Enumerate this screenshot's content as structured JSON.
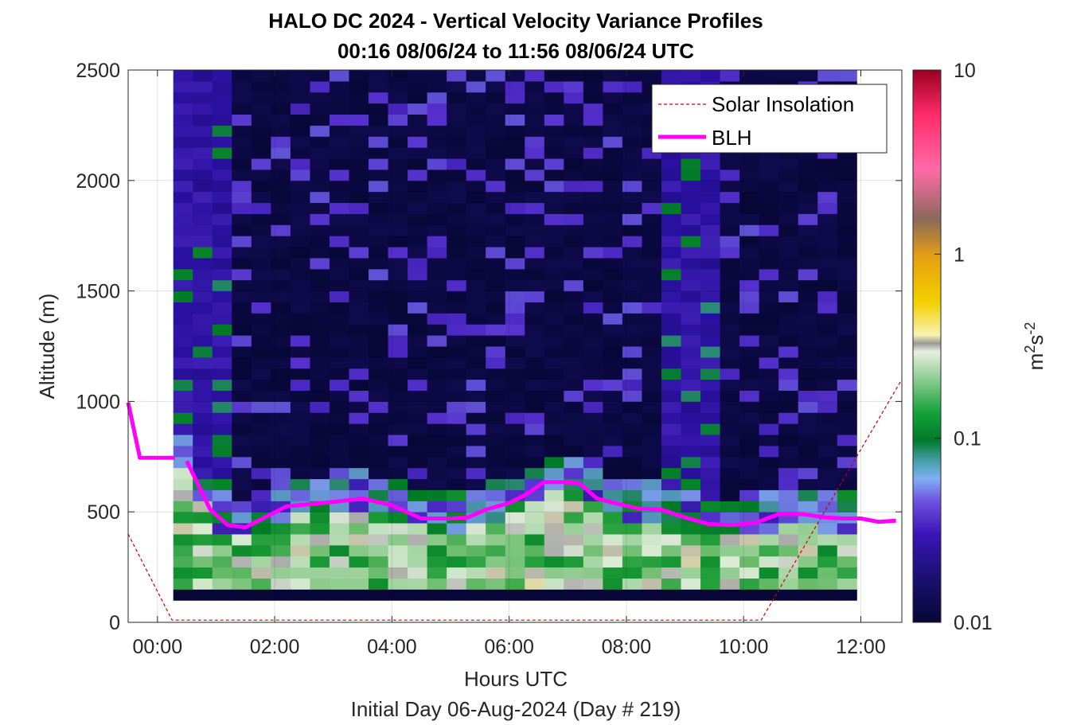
{
  "chart_data": {
    "type": "heatmap",
    "title": "HALO DC 2024 - Vertical Velocity Variance Profiles",
    "subtitle": "00:16 08/06/24 to 11:56 08/06/24  UTC",
    "xlabel": "Hours UTC",
    "xlabel2": "Initial Day 06-Aug-2024 (Day # 219)",
    "ylabel": "Altitude (m)",
    "colorbar_label": "m²s⁻²",
    "colorbar_label_base": "m",
    "colorbar_label_exp1": "2",
    "colorbar_label_mid": "s",
    "colorbar_label_exp2": "-2",
    "xlim": [
      -0.5,
      12.7
    ],
    "ylim": [
      0,
      2500
    ],
    "x_ticks": [
      0,
      2,
      4,
      6,
      8,
      10,
      12
    ],
    "x_tick_labels": [
      "00:00",
      "02:00",
      "04:00",
      "06:00",
      "08:00",
      "10:00",
      "12:00"
    ],
    "y_ticks": [
      0,
      500,
      1000,
      1500,
      2000,
      2500
    ],
    "y_tick_labels": [
      "0",
      "500",
      "1000",
      "1500",
      "2000",
      "2500"
    ],
    "color_scale": "log",
    "clim": [
      0.01,
      10
    ],
    "colorbar_ticks": [
      0.01,
      0.1,
      1,
      10
    ],
    "colorbar_tick_labels": [
      "0.01",
      "0.1",
      "1",
      "10"
    ],
    "grid": true,
    "legend_position": "top-right",
    "legend": [
      {
        "label": "Solar Insolation",
        "style": "dashed",
        "color": "#cc0000"
      },
      {
        "label": "BLH",
        "style": "solid",
        "color": "#ff00ff"
      }
    ],
    "heatmap_time_range_h": [
      0.27,
      11.93
    ],
    "heatmap_altitude_range_m": [
      100,
      2500
    ],
    "series": [
      {
        "name": "BLH",
        "x": [
          -0.5,
          -0.3,
          0.3,
          0.5,
          0.7,
          0.9,
          1.2,
          1.5,
          1.8,
          2.2,
          2.6,
          3.0,
          3.5,
          4.0,
          4.5,
          5.0,
          5.3,
          5.6,
          6.0,
          6.3,
          6.6,
          6.9,
          7.2,
          7.5,
          7.8,
          8.2,
          8.6,
          9.0,
          9.4,
          9.8,
          10.2,
          10.6,
          11.0,
          11.4,
          11.7,
          12.0,
          12.3,
          12.6
        ],
        "y": [
          995,
          745,
          745,
          730,
          620,
          510,
          440,
          430,
          470,
          525,
          535,
          545,
          560,
          530,
          470,
          470,
          475,
          510,
          540,
          580,
          635,
          635,
          630,
          560,
          540,
          515,
          510,
          475,
          445,
          440,
          450,
          490,
          490,
          475,
          470,
          470,
          455,
          460
        ]
      },
      {
        "name": "Solar Insolation",
        "x": [
          -0.5,
          0.25,
          10.3,
          12.7
        ],
        "y": [
          400,
          10,
          10,
          1100
        ]
      }
    ]
  }
}
